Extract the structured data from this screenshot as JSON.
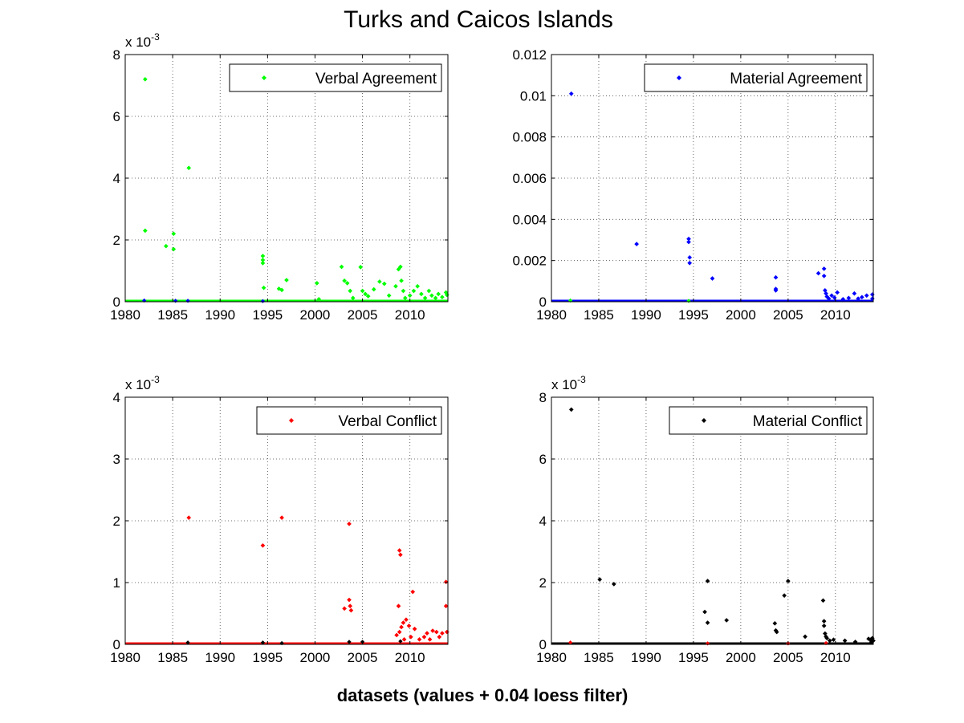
{
  "figure": {
    "title": "Turks and Caicos Islands",
    "xlabel": "datasets (values + 0.04 loess filter)"
  },
  "chart_data": [
    {
      "type": "scatter",
      "legend": "Verbal Agreement",
      "legend_position": "top-right",
      "series_color": "#00ff00",
      "baseline_color": "#0000ff",
      "xlim": [
        1980,
        2014
      ],
      "ylim": [
        0,
        0.008
      ],
      "yticks": [
        0,
        0.002,
        0.004,
        0.006,
        0.008
      ],
      "ytick_labels": [
        "0",
        "2",
        "4",
        "6",
        "8"
      ],
      "exponent_label": "x 10",
      "exponent_power": "-3",
      "xticks": [
        1980,
        1985,
        1990,
        1995,
        2000,
        2005,
        2010
      ],
      "xtick_labels": [
        "1980",
        "1985",
        "1990",
        "1995",
        "2000",
        "2005",
        "2010"
      ],
      "grid": true,
      "points": [
        [
          1982.1,
          0.0072
        ],
        [
          1982.1,
          0.0023
        ],
        [
          1984.3,
          0.0018
        ],
        [
          1985.1,
          0.0022
        ],
        [
          1985.1,
          0.0017
        ],
        [
          1986.7,
          0.00433
        ],
        [
          1994.5,
          0.00148
        ],
        [
          1994.5,
          0.00135
        ],
        [
          1994.5,
          0.00125
        ],
        [
          1994.6,
          0.00045
        ],
        [
          1996.2,
          0.00042
        ],
        [
          1996.5,
          0.00038
        ],
        [
          1997.0,
          0.0007
        ],
        [
          2000.2,
          0.0006
        ],
        [
          2000.4,
          8e-05
        ],
        [
          2002.8,
          0.00113
        ],
        [
          2003.1,
          0.00068
        ],
        [
          2003.4,
          0.0006
        ],
        [
          2003.7,
          0.00035
        ],
        [
          2004.0,
          0.00012
        ],
        [
          2004.8,
          0.00112
        ],
        [
          2005.0,
          0.00035
        ],
        [
          2005.3,
          0.00025
        ],
        [
          2005.6,
          0.00018
        ],
        [
          2006.2,
          0.0004
        ],
        [
          2006.8,
          0.00065
        ],
        [
          2007.3,
          0.00058
        ],
        [
          2007.8,
          0.0002
        ],
        [
          2008.5,
          0.0005
        ],
        [
          2008.8,
          0.00105
        ],
        [
          2009.0,
          0.00113
        ],
        [
          2009.1,
          0.00068
        ],
        [
          2009.3,
          0.00035
        ],
        [
          2009.5,
          0.00012
        ],
        [
          2010.0,
          0.0002
        ],
        [
          2010.4,
          0.00035
        ],
        [
          2010.8,
          0.0005
        ],
        [
          2011.2,
          0.00025
        ],
        [
          2011.6,
          0.00012
        ],
        [
          2012.0,
          0.00035
        ],
        [
          2012.3,
          0.0002
        ],
        [
          2012.7,
          0.00012
        ],
        [
          2013.0,
          0.00025
        ],
        [
          2013.4,
          0.00015
        ],
        [
          2013.8,
          0.0003
        ],
        [
          2013.9,
          0.00022
        ]
      ],
      "baseline_points": [
        [
          1982.0,
          4e-05
        ],
        [
          1985.3,
          3e-05
        ],
        [
          1986.6,
          3e-05
        ],
        [
          1994.5,
          2e-05
        ]
      ]
    },
    {
      "type": "scatter",
      "legend": "Material Agreement",
      "legend_position": "top-right",
      "series_color": "#0000ff",
      "baseline_color": "#00ff00",
      "xlim": [
        1980,
        2014
      ],
      "ylim": [
        0,
        0.012
      ],
      "yticks": [
        0,
        0.002,
        0.004,
        0.006,
        0.008,
        0.01,
        0.012
      ],
      "ytick_labels": [
        "0",
        "0.002",
        "0.004",
        "0.006",
        "0.008",
        "0.01",
        "0.012"
      ],
      "exponent_label": "",
      "exponent_power": "",
      "xticks": [
        1980,
        1985,
        1990,
        1995,
        2000,
        2005,
        2010
      ],
      "xtick_labels": [
        "1980",
        "1985",
        "1990",
        "1995",
        "2000",
        "2005",
        "2010"
      ],
      "grid": true,
      "points": [
        [
          1982.1,
          0.0101
        ],
        [
          1989.0,
          0.0028
        ],
        [
          1994.5,
          0.00305
        ],
        [
          1994.5,
          0.0029
        ],
        [
          1994.6,
          0.00215
        ],
        [
          1994.6,
          0.00188
        ],
        [
          1997.0,
          0.00113
        ],
        [
          2003.7,
          0.00118
        ],
        [
          2003.7,
          0.00062
        ],
        [
          2003.7,
          0.00055
        ],
        [
          2008.2,
          0.00138
        ],
        [
          2008.8,
          0.0016
        ],
        [
          2008.8,
          0.00125
        ],
        [
          2008.9,
          0.00055
        ],
        [
          2009.0,
          0.0004
        ],
        [
          2009.1,
          0.00025
        ],
        [
          2009.3,
          0.00015
        ],
        [
          2009.6,
          0.0003
        ],
        [
          2009.9,
          0.0002
        ],
        [
          2010.2,
          0.00045
        ],
        [
          2010.8,
          0.00012
        ],
        [
          2011.4,
          0.00018
        ],
        [
          2012.0,
          0.0004
        ],
        [
          2012.4,
          0.00015
        ],
        [
          2012.8,
          0.00022
        ],
        [
          2013.3,
          0.0003
        ],
        [
          2013.9,
          0.00035
        ],
        [
          2013.9,
          0.00015
        ]
      ],
      "baseline_points": [
        [
          1982.0,
          6e-05
        ],
        [
          1994.5,
          4e-05
        ]
      ]
    },
    {
      "type": "scatter",
      "legend": "Verbal Conflict",
      "legend_position": "top-right",
      "series_color": "#ff0000",
      "baseline_color": "#000000",
      "xlim": [
        1980,
        2014
      ],
      "ylim": [
        0,
        0.004
      ],
      "yticks": [
        0,
        0.001,
        0.002,
        0.003,
        0.004
      ],
      "ytick_labels": [
        "0",
        "1",
        "2",
        "3",
        "4"
      ],
      "exponent_label": "x 10",
      "exponent_power": "-3",
      "xticks": [
        1980,
        1985,
        1990,
        1995,
        2000,
        2005,
        2010
      ],
      "xtick_labels": [
        "1980",
        "1985",
        "1990",
        "1995",
        "2000",
        "2005",
        "2010"
      ],
      "grid": true,
      "points": [
        [
          1986.7,
          0.00205
        ],
        [
          1994.5,
          0.0016
        ],
        [
          1996.5,
          0.00205
        ],
        [
          2003.1,
          0.00058
        ],
        [
          2003.6,
          0.00195
        ],
        [
          2003.6,
          0.00072
        ],
        [
          2003.7,
          0.00062
        ],
        [
          2003.8,
          0.00055
        ],
        [
          2008.8,
          0.00062
        ],
        [
          2008.9,
          0.00152
        ],
        [
          2009.0,
          0.00145
        ],
        [
          2008.6,
          0.00015
        ],
        [
          2008.9,
          0.0002
        ],
        [
          2009.1,
          0.00028
        ],
        [
          2009.3,
          0.00035
        ],
        [
          2009.6,
          0.0004
        ],
        [
          2009.9,
          0.0003
        ],
        [
          2010.3,
          0.00085
        ],
        [
          2010.5,
          0.00025
        ],
        [
          2011.0,
          8e-05
        ],
        [
          2011.5,
          0.00012
        ],
        [
          2011.8,
          0.00018
        ],
        [
          2012.1,
          8e-05
        ],
        [
          2012.4,
          0.00022
        ],
        [
          2012.8,
          0.0002
        ],
        [
          2013.1,
          0.00012
        ],
        [
          2013.4,
          0.00018
        ],
        [
          2013.8,
          0.00101
        ],
        [
          2013.8,
          0.00062
        ],
        [
          2013.9,
          0.0002
        ],
        [
          2009.4,
          8e-05
        ],
        [
          2010.1,
          0.00012
        ]
      ],
      "baseline_points": [
        [
          1986.6,
          3e-05
        ],
        [
          1994.5,
          3e-05
        ],
        [
          1996.5,
          2e-05
        ],
        [
          2003.6,
          4e-05
        ],
        [
          2005.0,
          4e-05
        ],
        [
          2009.0,
          5e-05
        ]
      ]
    },
    {
      "type": "scatter",
      "legend": "Material Conflict",
      "legend_position": "top-right",
      "series_color": "#000000",
      "baseline_color": "#ff0000",
      "xlim": [
        1980,
        2014
      ],
      "ylim": [
        0,
        0.008
      ],
      "yticks": [
        0,
        0.002,
        0.004,
        0.006,
        0.008
      ],
      "ytick_labels": [
        "0",
        "2",
        "4",
        "6",
        "8"
      ],
      "exponent_label": "x 10",
      "exponent_power": "-3",
      "xticks": [
        1980,
        1985,
        1990,
        1995,
        2000,
        2005,
        2010
      ],
      "xtick_labels": [
        "1980",
        "1985",
        "1990",
        "1995",
        "2000",
        "2005",
        "2010"
      ],
      "grid": true,
      "points": [
        [
          1982.1,
          0.0076
        ],
        [
          1985.1,
          0.0021
        ],
        [
          1986.6,
          0.00195
        ],
        [
          1996.2,
          0.00105
        ],
        [
          1996.5,
          0.0007
        ],
        [
          1996.5,
          0.00205
        ],
        [
          1998.5,
          0.00078
        ],
        [
          2003.6,
          0.00068
        ],
        [
          2003.7,
          0.00045
        ],
        [
          2003.8,
          0.0004
        ],
        [
          2004.6,
          0.00158
        ],
        [
          2005.0,
          0.00205
        ],
        [
          2006.8,
          0.00025
        ],
        [
          2008.7,
          0.00142
        ],
        [
          2008.8,
          0.00075
        ],
        [
          2008.8,
          0.0006
        ],
        [
          2008.9,
          0.00035
        ],
        [
          2009.0,
          0.00025
        ],
        [
          2009.1,
          0.0002
        ],
        [
          2009.4,
          0.00012
        ],
        [
          2009.8,
          0.00015
        ],
        [
          2011.0,
          0.00012
        ],
        [
          2012.1,
          8e-05
        ],
        [
          2013.5,
          0.00018
        ],
        [
          2013.7,
          0.00015
        ],
        [
          2013.9,
          0.0002
        ],
        [
          2013.8,
          8e-05
        ],
        [
          2014.0,
          0.00012
        ]
      ],
      "baseline_points": [
        [
          1982.0,
          6e-05
        ],
        [
          1996.5,
          3e-05
        ],
        [
          2005.0,
          3e-05
        ],
        [
          2009.0,
          4e-05
        ]
      ]
    }
  ]
}
